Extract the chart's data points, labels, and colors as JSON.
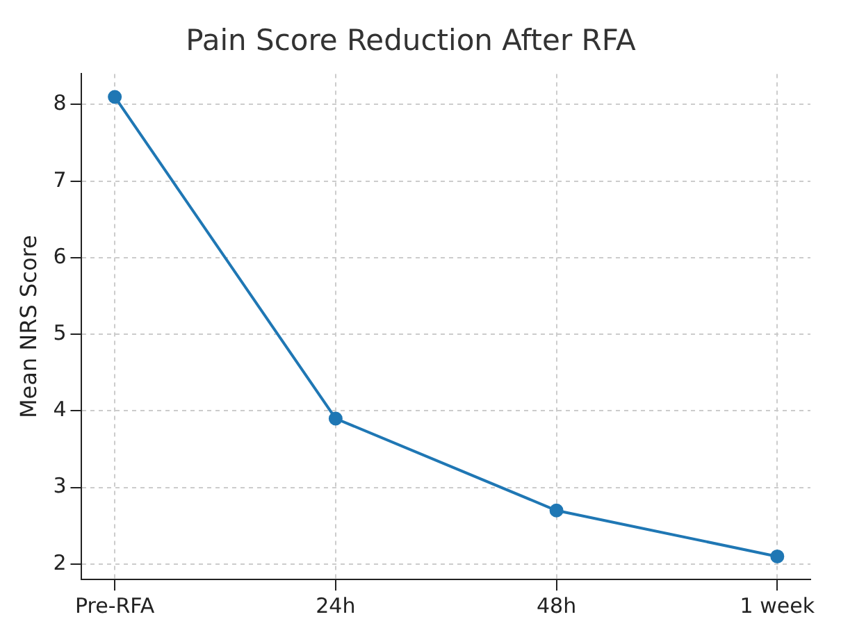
{
  "chart_data": {
    "type": "line",
    "title": "Pain Score Reduction After RFA",
    "ylabel": "Mean NRS Score",
    "categories": [
      "Pre-RFA",
      "24h",
      "48h",
      "1 week"
    ],
    "series": [
      {
        "color": "#1f77b4",
        "values": [
          8.1,
          3.9,
          2.7,
          2.1
        ]
      }
    ],
    "ylim": [
      1.8,
      8.4
    ],
    "yticks": [
      2,
      3,
      4,
      5,
      6,
      7,
      8
    ],
    "grid": true,
    "marker": "circle",
    "line_style": "solid"
  }
}
